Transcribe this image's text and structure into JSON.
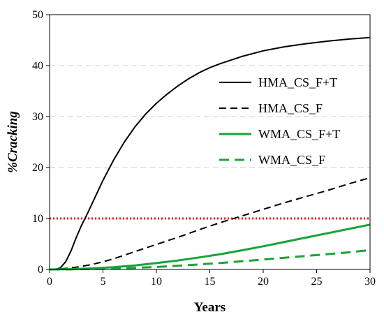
{
  "chart_data": {
    "type": "line",
    "xlabel": "Years",
    "ylabel": "%Cracking",
    "xlim": [
      0,
      30
    ],
    "ylim": [
      0,
      50
    ],
    "xticks": [
      0,
      5,
      10,
      15,
      20,
      25,
      30
    ],
    "yticks": [
      0,
      10,
      20,
      30,
      40,
      50
    ],
    "grid": "horizontal-dashed",
    "legend_position": "right",
    "threshold": {
      "y": 10,
      "color": "#ff0000",
      "style": "dotted"
    },
    "series": [
      {
        "name": "HMA_CS_F+T",
        "color": "#000000",
        "style": "solid",
        "x": [
          0,
          0.5,
          1,
          1.5,
          2,
          2.5,
          3,
          3.5,
          4,
          5,
          6,
          7,
          8,
          9,
          10,
          11,
          12,
          13,
          14,
          15,
          16,
          18,
          20,
          22,
          24,
          26,
          28,
          30
        ],
        "y": [
          0,
          0,
          0.3,
          1.5,
          3.6,
          6.3,
          8.7,
          10.8,
          13.0,
          17.5,
          21.5,
          25.0,
          28.0,
          30.5,
          32.6,
          34.4,
          36.0,
          37.4,
          38.6,
          39.6,
          40.4,
          41.8,
          42.9,
          43.7,
          44.3,
          44.8,
          45.2,
          45.5
        ]
      },
      {
        "name": "HMA_CS_F",
        "color": "#000000",
        "style": "dashed",
        "x": [
          0,
          1,
          2,
          3,
          4,
          5,
          6,
          7,
          8,
          9,
          10,
          12,
          14,
          16,
          18,
          20,
          22,
          24,
          26,
          28,
          30
        ],
        "y": [
          0,
          0.1,
          0.3,
          0.6,
          1.0,
          1.5,
          2.1,
          2.8,
          3.5,
          4.2,
          4.9,
          6.3,
          7.8,
          9.2,
          10.5,
          11.8,
          13.1,
          14.3,
          15.5,
          16.8,
          18.0
        ]
      },
      {
        "name": "WMA_CS_F+T",
        "color": "#1aa33a",
        "style": "solid",
        "x": [
          0,
          2,
          4,
          6,
          8,
          10,
          12,
          14,
          16,
          18,
          20,
          22,
          24,
          26,
          28,
          30
        ],
        "y": [
          0,
          0.05,
          0.2,
          0.45,
          0.8,
          1.25,
          1.75,
          2.35,
          3.0,
          3.75,
          4.55,
          5.4,
          6.25,
          7.1,
          7.95,
          8.8
        ]
      },
      {
        "name": "WMA_CS_F",
        "color": "#1aa33a",
        "style": "dashed",
        "x": [
          0,
          2,
          4,
          6,
          8,
          10,
          12,
          14,
          16,
          18,
          20,
          22,
          24,
          26,
          28,
          30
        ],
        "y": [
          0,
          0.02,
          0.08,
          0.18,
          0.32,
          0.5,
          0.72,
          0.98,
          1.27,
          1.6,
          1.95,
          2.3,
          2.65,
          3.0,
          3.35,
          3.8
        ]
      }
    ]
  }
}
